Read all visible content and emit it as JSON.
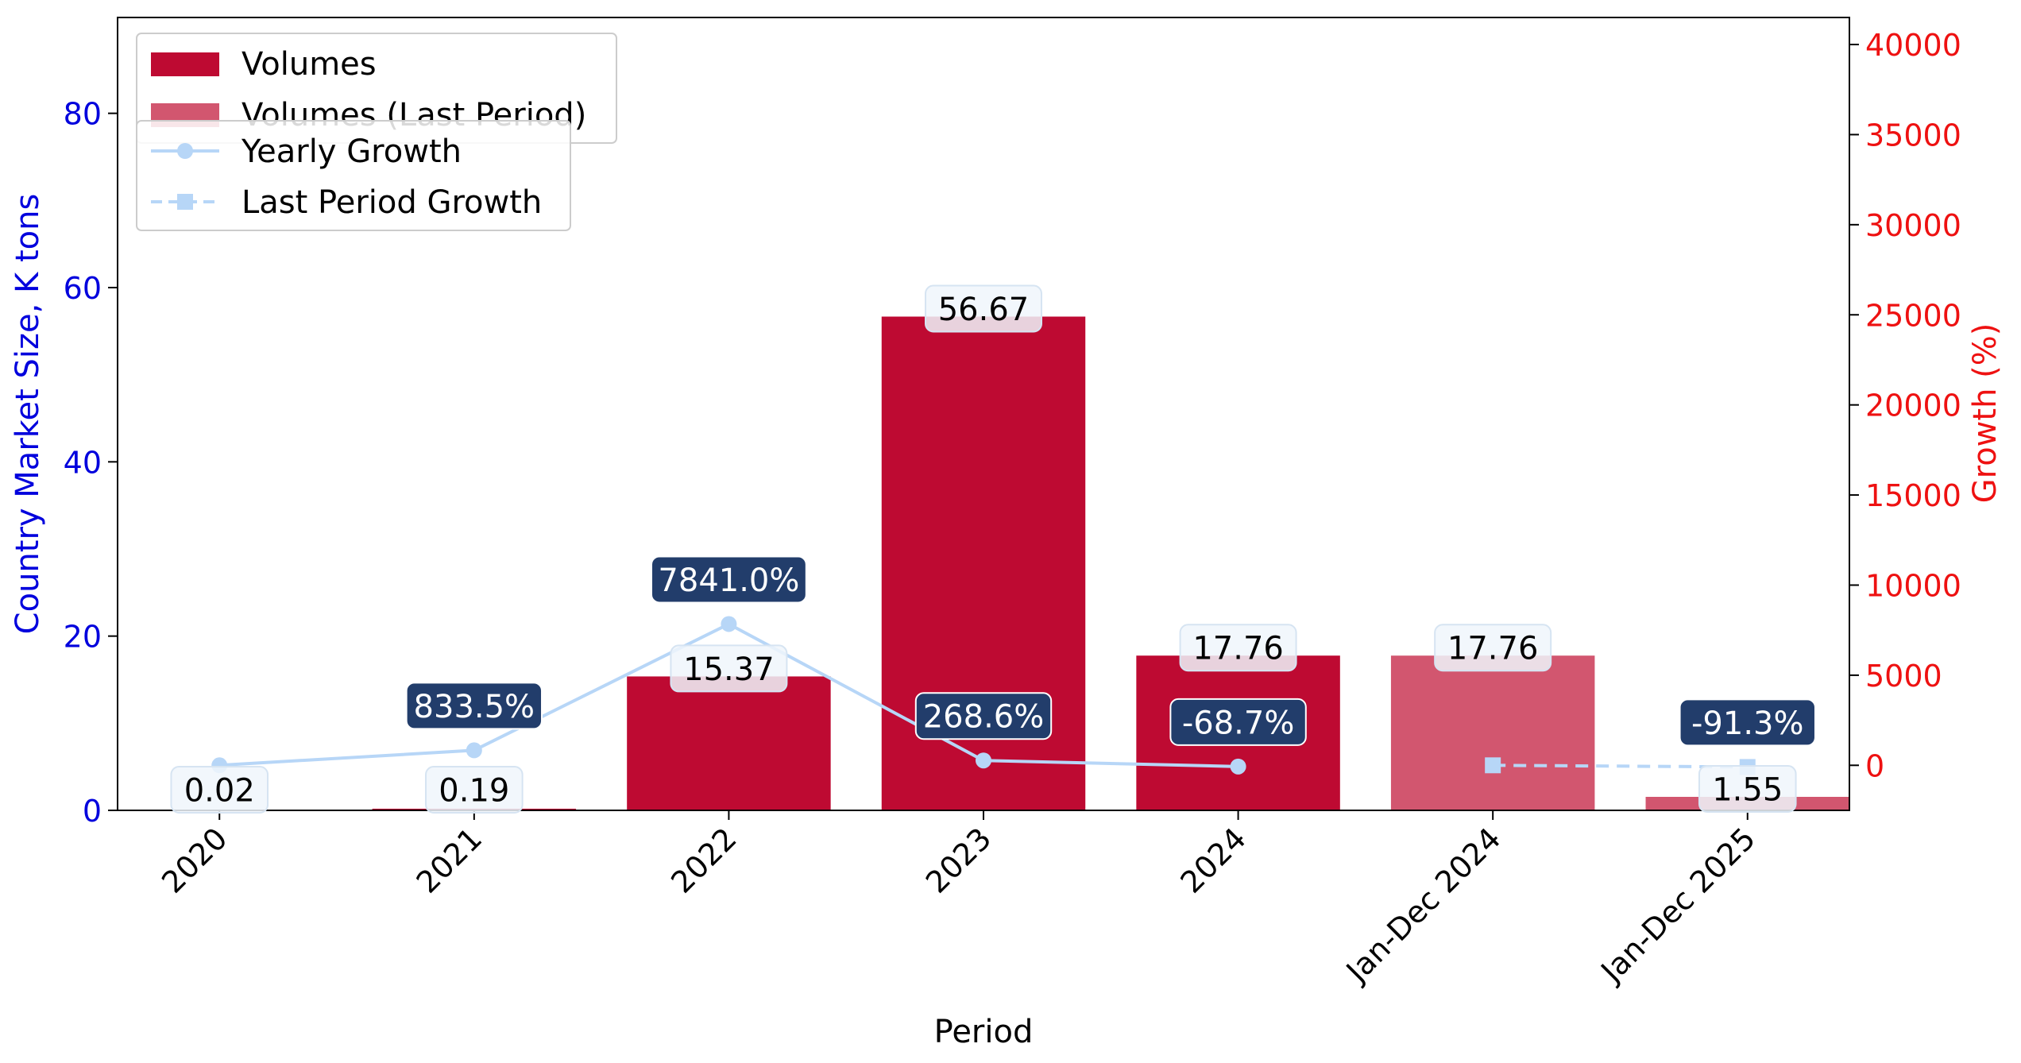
{
  "chart_data": {
    "type": "bar",
    "categories": [
      "2020",
      "2021",
      "2022",
      "2023",
      "2024",
      "Jan-Dec 2024",
      "Jan-Dec 2025"
    ],
    "xlabel": "Period",
    "ylabel": "Country Market Size, K tons",
    "y2label": "Growth (%)",
    "ylim": [
      0,
      91
    ],
    "y2lim": [
      -2500,
      41500
    ],
    "yticks": [
      0,
      20,
      40,
      60,
      80
    ],
    "y2ticks": [
      0,
      5000,
      10000,
      15000,
      20000,
      25000,
      30000,
      35000,
      40000
    ],
    "grid": false,
    "legend_position": "top-left",
    "volumes": [
      {
        "category": "2020",
        "value": 0.02,
        "label": "0.02",
        "kind": "current"
      },
      {
        "category": "2021",
        "value": 0.19,
        "label": "0.19",
        "kind": "current"
      },
      {
        "category": "2022",
        "value": 15.37,
        "label": "15.37",
        "kind": "current"
      },
      {
        "category": "2023",
        "value": 56.67,
        "label": "56.67",
        "kind": "current"
      },
      {
        "category": "2024",
        "value": 17.76,
        "label": "17.76",
        "kind": "current"
      },
      {
        "category": "Jan-Dec 2024",
        "value": 17.76,
        "label": "17.76",
        "kind": "last"
      },
      {
        "category": "Jan-Dec 2025",
        "value": 1.55,
        "label": "1.55",
        "kind": "last"
      }
    ],
    "yearly_growth": [
      {
        "category": "2020",
        "value": 0,
        "label": ""
      },
      {
        "category": "2021",
        "value": 833.5,
        "label": "833.5%"
      },
      {
        "category": "2022",
        "value": 7841.0,
        "label": "7841.0%"
      },
      {
        "category": "2023",
        "value": 268.6,
        "label": "268.6%"
      },
      {
        "category": "2024",
        "value": -68.7,
        "label": "-68.7%"
      }
    ],
    "last_period_growth": [
      {
        "category": "Jan-Dec 2024",
        "value": 0,
        "label": ""
      },
      {
        "category": "Jan-Dec 2025",
        "value": -91.3,
        "label": "-91.3%"
      }
    ],
    "legend": {
      "box1": [
        "Volumes",
        "Volumes (Last Period)"
      ],
      "box2": [
        "Yearly Growth",
        "Last Period Growth"
      ]
    },
    "colors": {
      "volumes": "#be0a32",
      "volumes_last": "#d2566f",
      "growth_line": "#b7d6f7",
      "left_axis": "#0000dd",
      "right_axis": "#ee1111",
      "growth_label_bg": "#223d6b",
      "value_label_bg": "#f0f6fb"
    }
  }
}
